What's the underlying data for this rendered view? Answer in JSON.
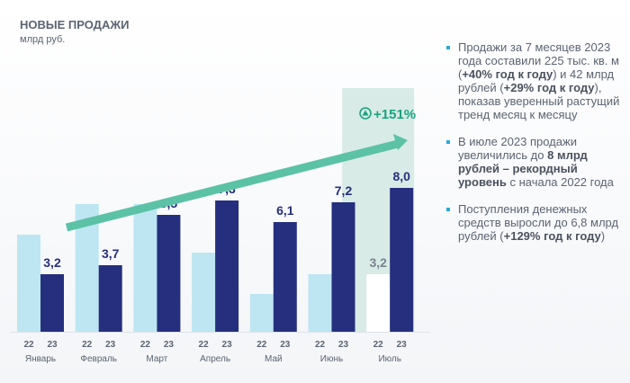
{
  "header": {
    "title": "НОВЫЕ ПРОДАЖИ",
    "unit": "млрд руб."
  },
  "chart_data": {
    "type": "bar",
    "title": "НОВЫЕ ПРОДАЖИ",
    "ylabel": "млрд руб.",
    "categories": [
      "Январь",
      "Февраль",
      "Март",
      "Апрель",
      "Май",
      "Июнь",
      "Июль"
    ],
    "sub_labels": [
      "22",
      "23"
    ],
    "series": [
      {
        "name": "22",
        "values": [
          5.4,
          7.1,
          7.1,
          4.4,
          2.1,
          3.2,
          3.2
        ],
        "color": "#bde6f2",
        "highlight_color": "#ffffff"
      },
      {
        "name": "23",
        "values": [
          3.2,
          3.7,
          6.5,
          7.3,
          6.1,
          7.2,
          8.0
        ],
        "color": "#252f7e"
      }
    ],
    "data_labels_23": [
      "3,2",
      "3,7",
      "6,5",
      "7,3",
      "6,1",
      "7,2",
      "8,0"
    ],
    "data_label_22_july": "3,2",
    "highlight": {
      "category": "Июль",
      "label": "+151%",
      "color": "#1aa37f",
      "band_color": "#d8ebe6"
    },
    "trend_arrow_color": "#5cc2a6",
    "ylim": [
      0,
      9
    ],
    "grid": false
  },
  "notes": [
    {
      "parts": [
        {
          "t": "Продажи за 7 месяцев 2023 года составили 225 тыс. кв. м ("
        },
        {
          "t": "+40% год к году",
          "b": true
        },
        {
          "t": ") и 42 млрд рублей ("
        },
        {
          "t": "+29% год к году",
          "b": true
        },
        {
          "t": "), показав уверенный растущий тренд месяц к месяцу"
        }
      ]
    },
    {
      "parts": [
        {
          "t": "В июле 2023 продажи увеличились до "
        },
        {
          "t": "8 млрд рублей – рекордный уровень",
          "b": true
        },
        {
          "t": " с начала 2022 года"
        }
      ]
    },
    {
      "parts": [
        {
          "t": "Поступления денежных средств выросли до 6,8 млрд рублей ("
        },
        {
          "t": "+129% год к году",
          "b": true
        },
        {
          "t": ")"
        }
      ]
    }
  ]
}
